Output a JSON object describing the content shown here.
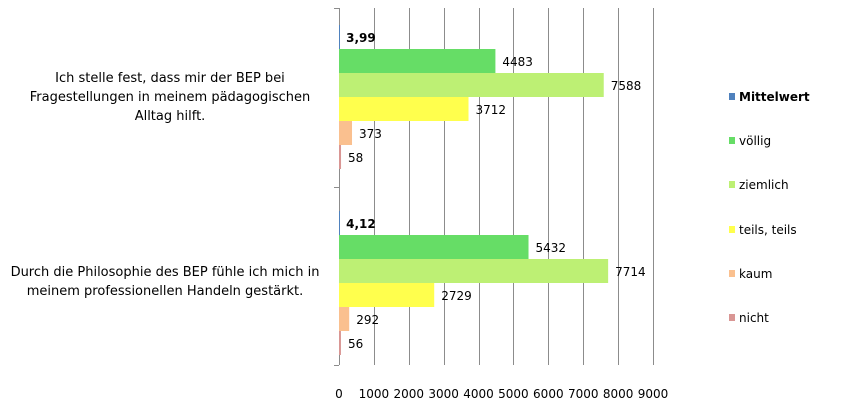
{
  "chart_data": {
    "type": "bar",
    "orientation": "horizontal",
    "categories": [
      "Ich stelle fest, dass mir der BEP bei Fragestellungen in meinem pädagogischen Alltag hilft.",
      "Durch die Philosophie des BEP fühle ich mich in meinem professionellen Handeln gestärkt."
    ],
    "series": [
      {
        "name": "Mittelwert",
        "values": [
          3.99,
          4.12
        ],
        "labels": [
          "3,99",
          "4,12"
        ],
        "color": "#4f81bd",
        "bold": true
      },
      {
        "name": "völlig",
        "values": [
          4483,
          5432
        ],
        "labels": [
          "4483",
          "5432"
        ],
        "color": "#66dd66"
      },
      {
        "name": "ziemlich",
        "values": [
          7588,
          7714
        ],
        "labels": [
          "7588",
          "7714"
        ],
        "color": "#bdf074"
      },
      {
        "name": "teils, teils",
        "values": [
          3712,
          2729
        ],
        "labels": [
          "3712",
          "2729"
        ],
        "color": "#ffff4d"
      },
      {
        "name": "kaum",
        "values": [
          373,
          292
        ],
        "labels": [
          "373",
          "292"
        ],
        "color": "#fac08f"
      },
      {
        "name": "nicht",
        "values": [
          58,
          56
        ],
        "labels": [
          "58",
          "56"
        ],
        "color": "#d99694"
      }
    ],
    "xlim": [
      0,
      9000
    ],
    "xticks": [
      0,
      1000,
      2000,
      3000,
      4000,
      5000,
      6000,
      7000,
      8000,
      9000
    ],
    "xtick_labels": [
      "0",
      "1000",
      "2000",
      "3000",
      "4000",
      "5000",
      "6000",
      "7000",
      "8000",
      "9000"
    ],
    "grid": true,
    "legend_position": "right",
    "title": "",
    "xlabel": "",
    "ylabel": ""
  }
}
